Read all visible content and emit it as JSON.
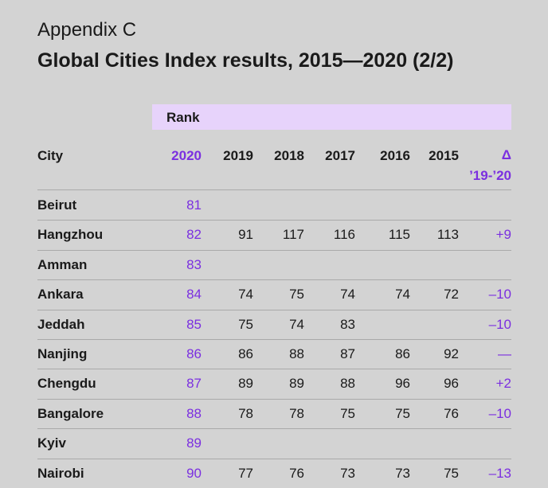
{
  "header": {
    "appendix": "Appendix C",
    "title": "Global Cities Index results, 2015—2020 (2/2)"
  },
  "table": {
    "group_label": "Rank",
    "city_header": "City",
    "years": [
      "2020",
      "2019",
      "2018",
      "2017",
      "2016",
      "2015"
    ],
    "delta_header": "Δ ’19-’20",
    "rows": [
      {
        "city": "Beirut",
        "ranks": [
          "81",
          "",
          "",
          "",
          "",
          ""
        ],
        "delta": ""
      },
      {
        "city": "Hangzhou",
        "ranks": [
          "82",
          "91",
          "117",
          "116",
          "115",
          "113"
        ],
        "delta": "+9"
      },
      {
        "city": "Amman",
        "ranks": [
          "83",
          "",
          "",
          "",
          "",
          ""
        ],
        "delta": ""
      },
      {
        "city": "Ankara",
        "ranks": [
          "84",
          "74",
          "75",
          "74",
          "74",
          "72"
        ],
        "delta": "–10"
      },
      {
        "city": "Jeddah",
        "ranks": [
          "85",
          "75",
          "74",
          "83",
          "",
          ""
        ],
        "delta": "–10"
      },
      {
        "city": "Nanjing",
        "ranks": [
          "86",
          "86",
          "88",
          "87",
          "86",
          "92"
        ],
        "delta": "—"
      },
      {
        "city": "Chengdu",
        "ranks": [
          "87",
          "89",
          "89",
          "88",
          "96",
          "96"
        ],
        "delta": "+2"
      },
      {
        "city": "Bangalore",
        "ranks": [
          "88",
          "78",
          "78",
          "75",
          "75",
          "76"
        ],
        "delta": "–10"
      },
      {
        "city": "Kyiv",
        "ranks": [
          "89",
          "",
          "",
          "",
          "",
          ""
        ],
        "delta": ""
      },
      {
        "city": "Nairobi",
        "ranks": [
          "90",
          "77",
          "76",
          "73",
          "73",
          "75"
        ],
        "delta": "–13"
      }
    ]
  },
  "colors": {
    "accent": "#7b2fe0",
    "rank_band": "#e7d3fb",
    "background": "#d3d3d3"
  }
}
